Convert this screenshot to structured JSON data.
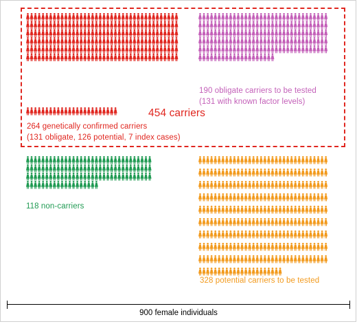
{
  "groups": [
    {
      "id": "confirmed",
      "count": 264,
      "color": "#e0261f",
      "label_lines": [
        "264 genetically confirmed carriers",
        "(131 obligate, 126 potential, 7 index cases)"
      ]
    },
    {
      "id": "obligate-to-test",
      "count": 190,
      "color": "#c35fb8",
      "label_lines": [
        "190 obligate carriers to be tested",
        "(131 with known factor levels)"
      ]
    },
    {
      "id": "non-carriers",
      "count": 118,
      "color": "#1f9a52",
      "label_lines": [
        "118 non-carriers"
      ]
    },
    {
      "id": "potential-to-test",
      "count": 328,
      "color": "#f29a1d",
      "label_lines": [
        "328 potential carriers to be tested"
      ]
    }
  ],
  "carriers_total_label": "454 carriers",
  "total_label": "900 female individuals",
  "icon": "female-person-icon"
}
